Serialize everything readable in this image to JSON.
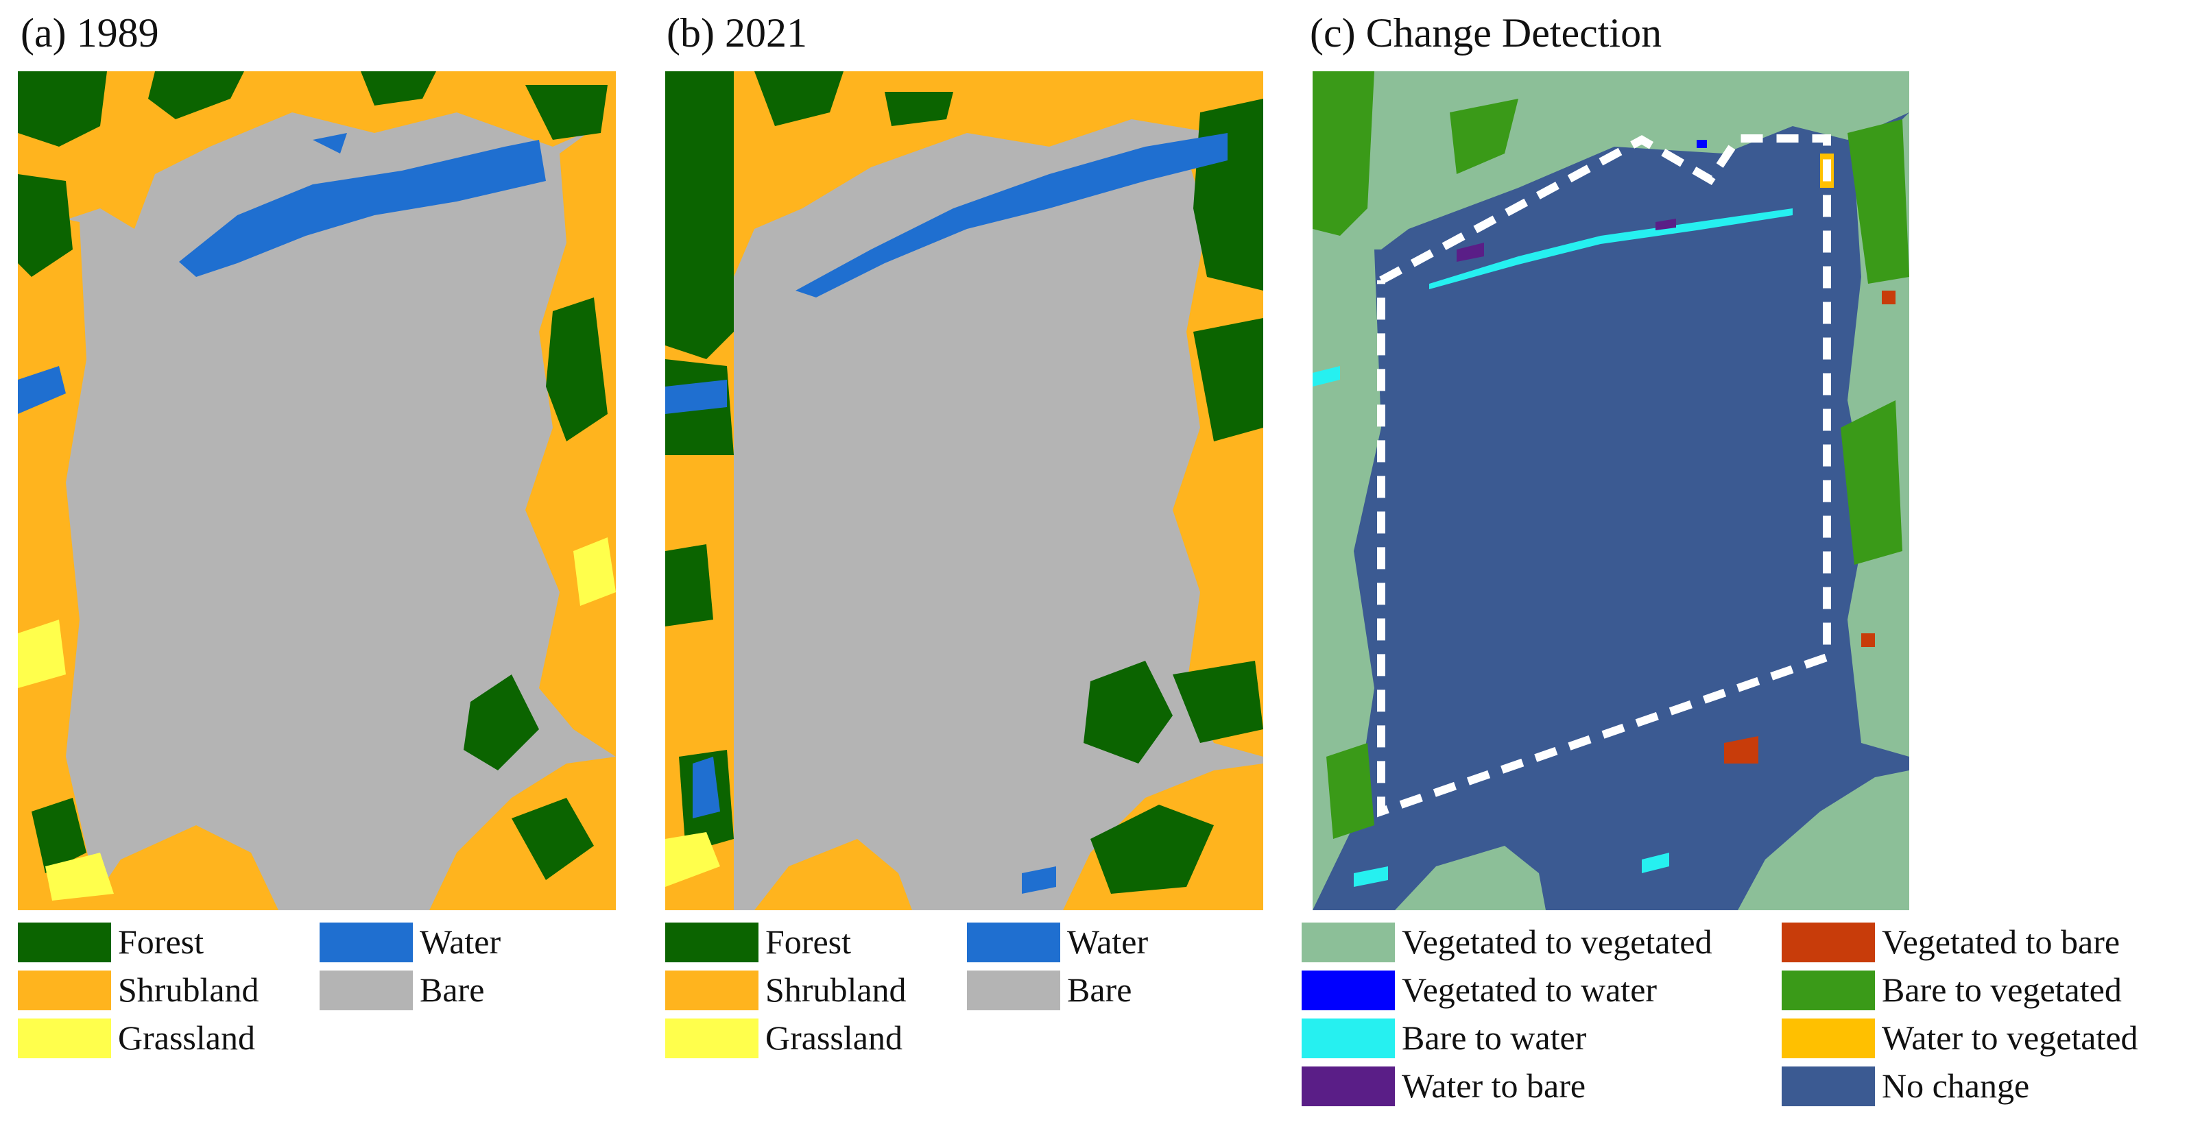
{
  "panels": [
    {
      "title": "(a) 1989"
    },
    {
      "title": "(b) 2021"
    },
    {
      "title": "(c) Change Detection"
    }
  ],
  "colors": {
    "forest": "#0b6400",
    "shrubland": "#ffb41e",
    "grassland": "#ffff4c",
    "water": "#1f6fd0",
    "bare": "#b4b4b4",
    "veg_to_veg": "#8cbf98",
    "veg_to_bare": "#c83c0a",
    "veg_to_water": "#0000ff",
    "bare_to_veg": "#3a9a18",
    "bare_to_water": "#26f0f0",
    "water_to_veg": "#ffc000",
    "water_to_bare": "#5a1e87",
    "no_change": "#3b5a92"
  },
  "landcover_legend": [
    {
      "label": "Forest",
      "color_key": "forest"
    },
    {
      "label": "Shrubland",
      "color_key": "shrubland"
    },
    {
      "label": "Grassland",
      "color_key": "grassland"
    },
    {
      "label": "Water",
      "color_key": "water"
    },
    {
      "label": "Bare",
      "color_key": "bare"
    }
  ],
  "change_legend": [
    {
      "label": "Vegetated to vegetated",
      "color_key": "veg_to_veg"
    },
    {
      "label": "Vegetated to water",
      "color_key": "veg_to_water"
    },
    {
      "label": "Bare to water",
      "color_key": "bare_to_water"
    },
    {
      "label": "Water to bare",
      "color_key": "water_to_bare"
    },
    {
      "label": "Vegetated to bare",
      "color_key": "veg_to_bare"
    },
    {
      "label": "Bare to vegetated",
      "color_key": "bare_to_veg"
    },
    {
      "label": "Water to vegetated",
      "color_key": "water_to_veg"
    },
    {
      "label": "No change",
      "color_key": "no_change"
    }
  ]
}
